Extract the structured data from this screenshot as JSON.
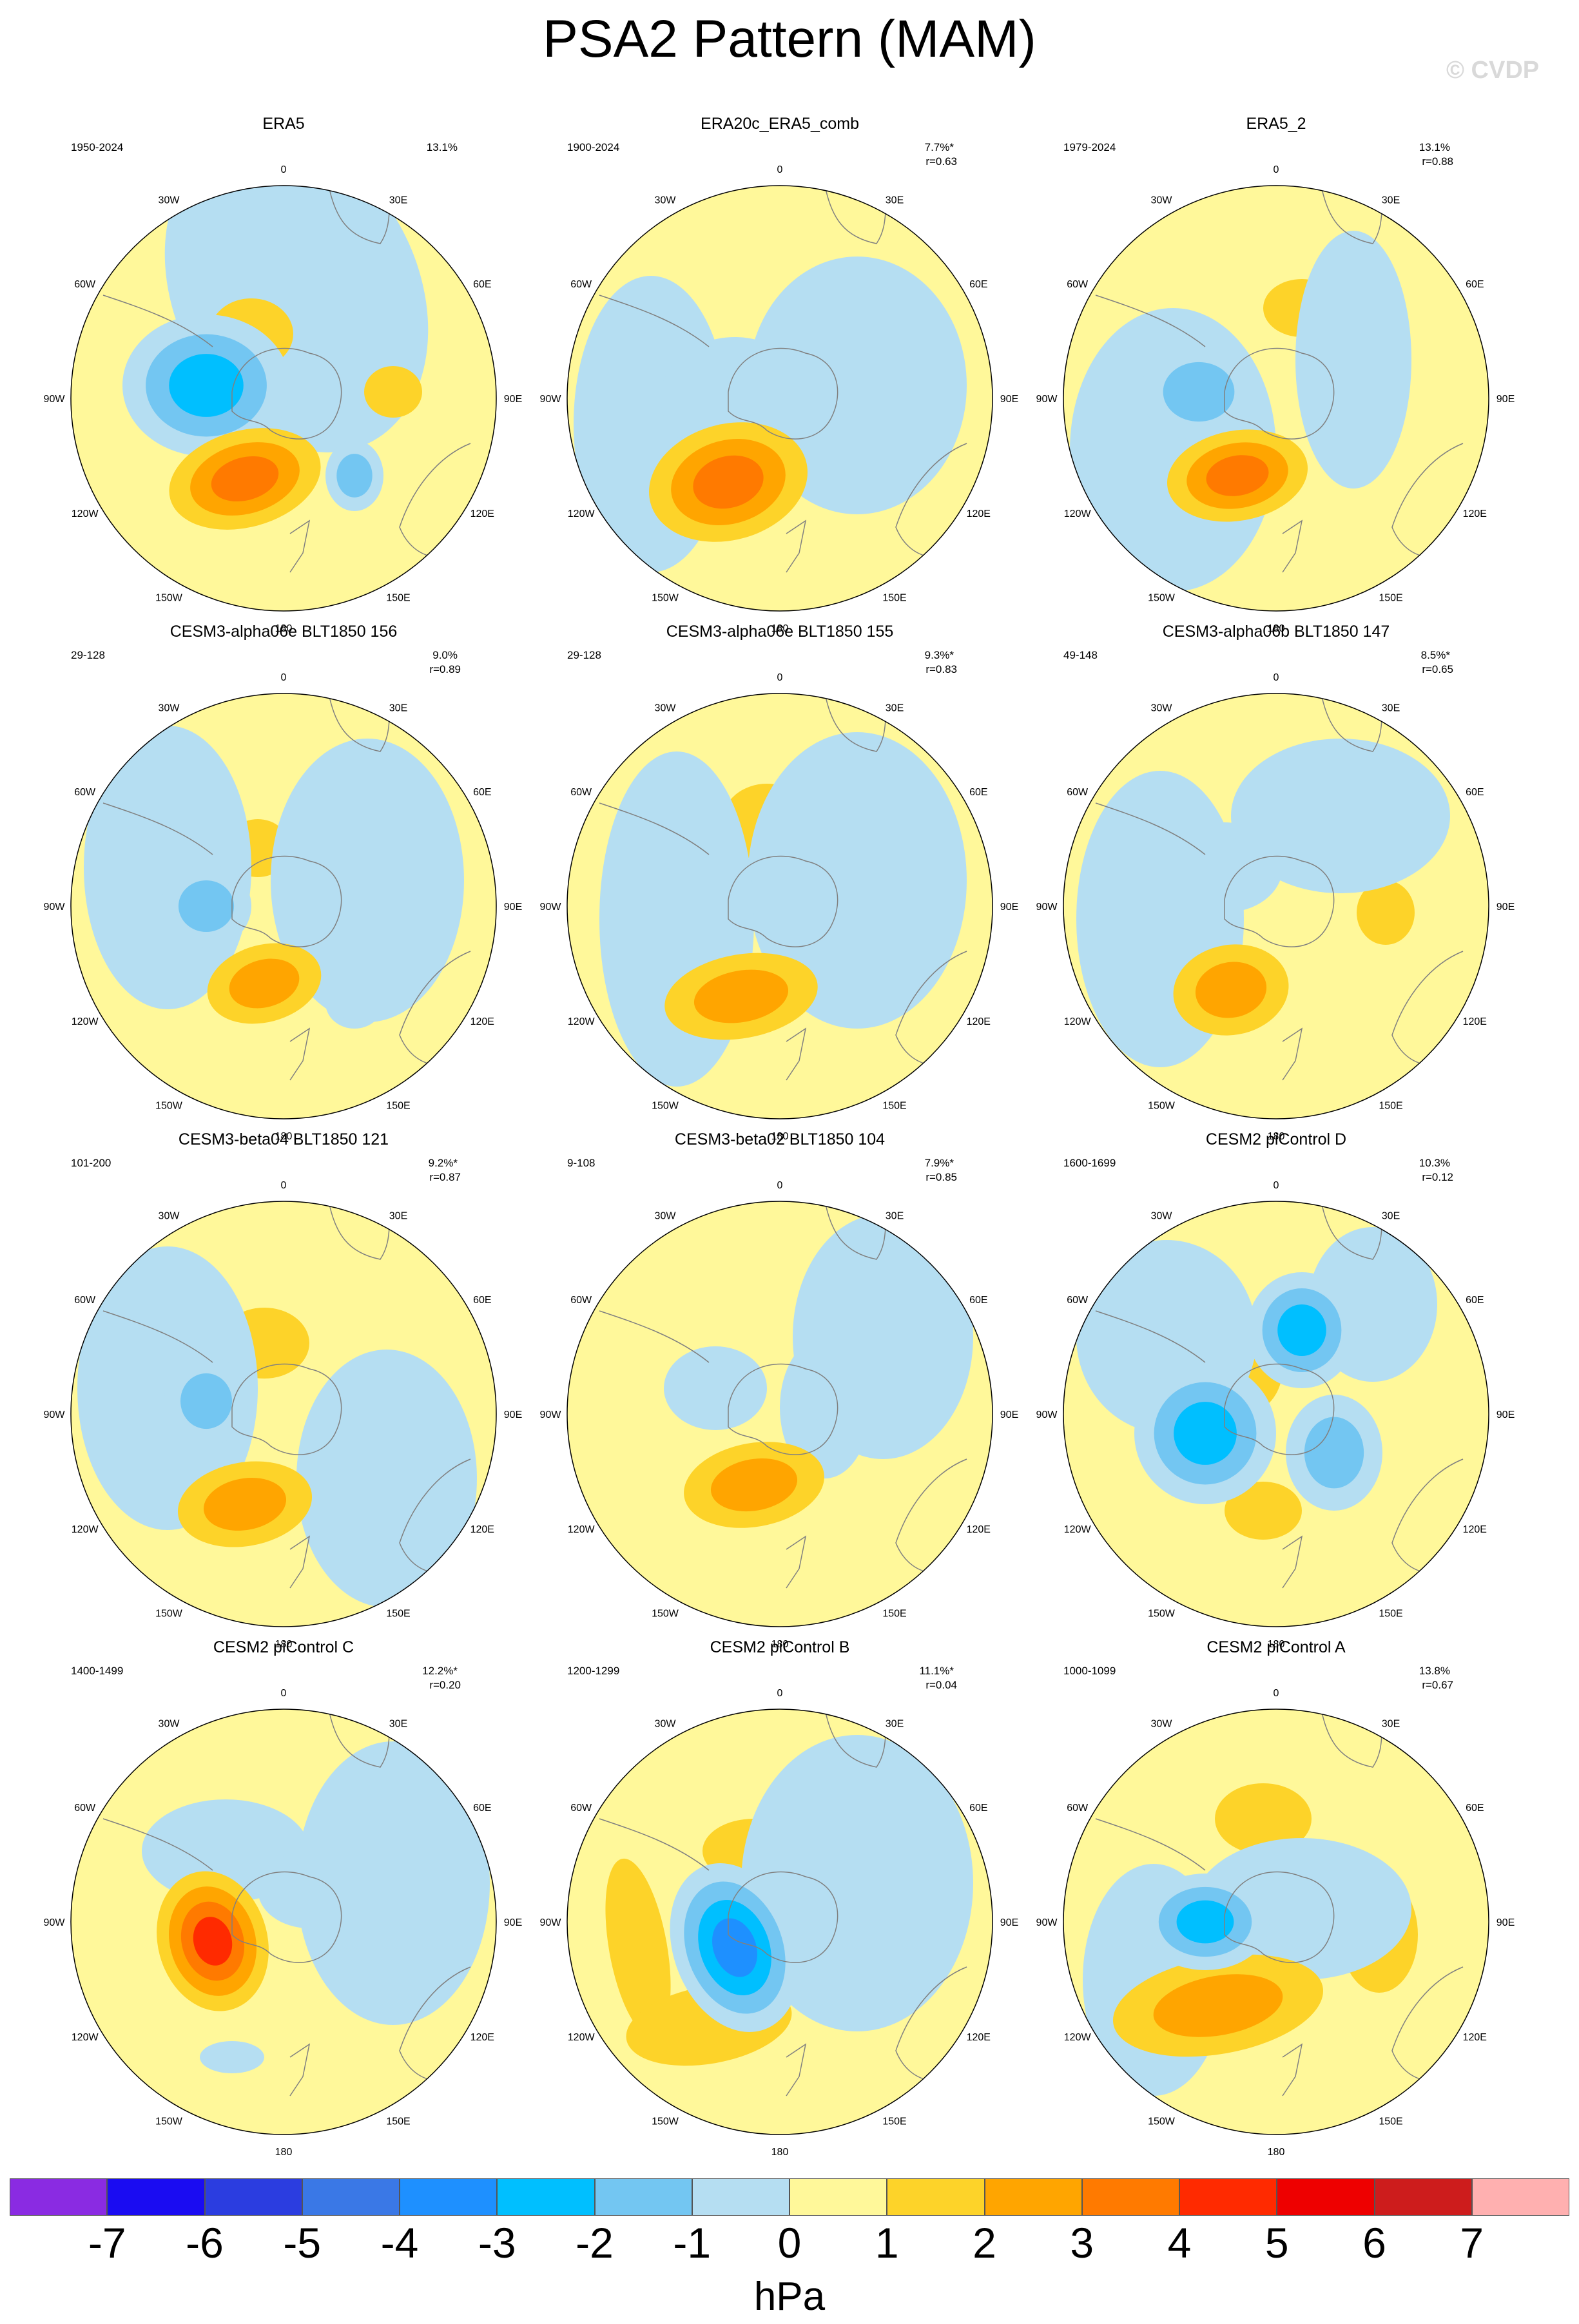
{
  "title": "PSA2 Pattern (MAM)",
  "watermark": "© CVDP",
  "longitude_labels": [
    "0",
    "30E",
    "60E",
    "90E",
    "120E",
    "150E",
    "180",
    "150W",
    "120W",
    "90W",
    "60W",
    "30W"
  ],
  "panels": [
    {
      "title": "ERA5",
      "years": "1950-2024",
      "pct": "13.1%",
      "r": ""
    },
    {
      "title": "ERA20c_ERA5_comb",
      "years": "1900-2024",
      "pct": "7.7%*",
      "r": "r=0.63"
    },
    {
      "title": "ERA5_2",
      "years": "1979-2024",
      "pct": "13.1%",
      "r": "r=0.88"
    },
    {
      "title": "CESM3-alpha06e BLT1850 156",
      "years": "29-128",
      "pct": "9.0%",
      "r": "r=0.89"
    },
    {
      "title": "CESM3-alpha06e BLT1850 155",
      "years": "29-128",
      "pct": "9.3%*",
      "r": "r=0.83"
    },
    {
      "title": "CESM3-alpha06b BLT1850 147",
      "years": "49-148",
      "pct": "8.5%*",
      "r": "r=0.65"
    },
    {
      "title": "CESM3-beta04 BLT1850 121",
      "years": "101-200",
      "pct": "9.2%*",
      "r": "r=0.87"
    },
    {
      "title": "CESM3-beta02 BLT1850 104",
      "years": "9-108",
      "pct": "7.9%*",
      "r": "r=0.85"
    },
    {
      "title": "CESM2 piControl D",
      "years": "1600-1699",
      "pct": "10.3%",
      "r": "r=0.12"
    },
    {
      "title": "CESM2 piControl C",
      "years": "1400-1499",
      "pct": "12.2%*",
      "r": "r=0.20"
    },
    {
      "title": "CESM2 piControl B",
      "years": "1200-1299",
      "pct": "11.1%*",
      "r": "r=0.04"
    },
    {
      "title": "CESM2 piControl A",
      "years": "1000-1099",
      "pct": "13.8%",
      "r": "r=0.67"
    }
  ],
  "colorbar": {
    "colors": [
      "#8a2be2",
      "#1a0cf2",
      "#2b3de0",
      "#3a78e6",
      "#1e90ff",
      "#00bfff",
      "#73c6f2",
      "#b5def2",
      "#fff89a",
      "#fdd329",
      "#ffa500",
      "#ff7a00",
      "#ff2a00",
      "#ee0000",
      "#cd1c1c",
      "#ffb0b0"
    ],
    "tick_labels": [
      "-7",
      "-6",
      "-5",
      "-4",
      "-3",
      "-2",
      "-1",
      "0",
      "1",
      "2",
      "3",
      "4",
      "5",
      "6",
      "7"
    ],
    "units": "hPa"
  },
  "map_colors": {
    "background_positive": "#fff89a",
    "background_negative": "#b5def2",
    "coast": "#808080"
  }
}
